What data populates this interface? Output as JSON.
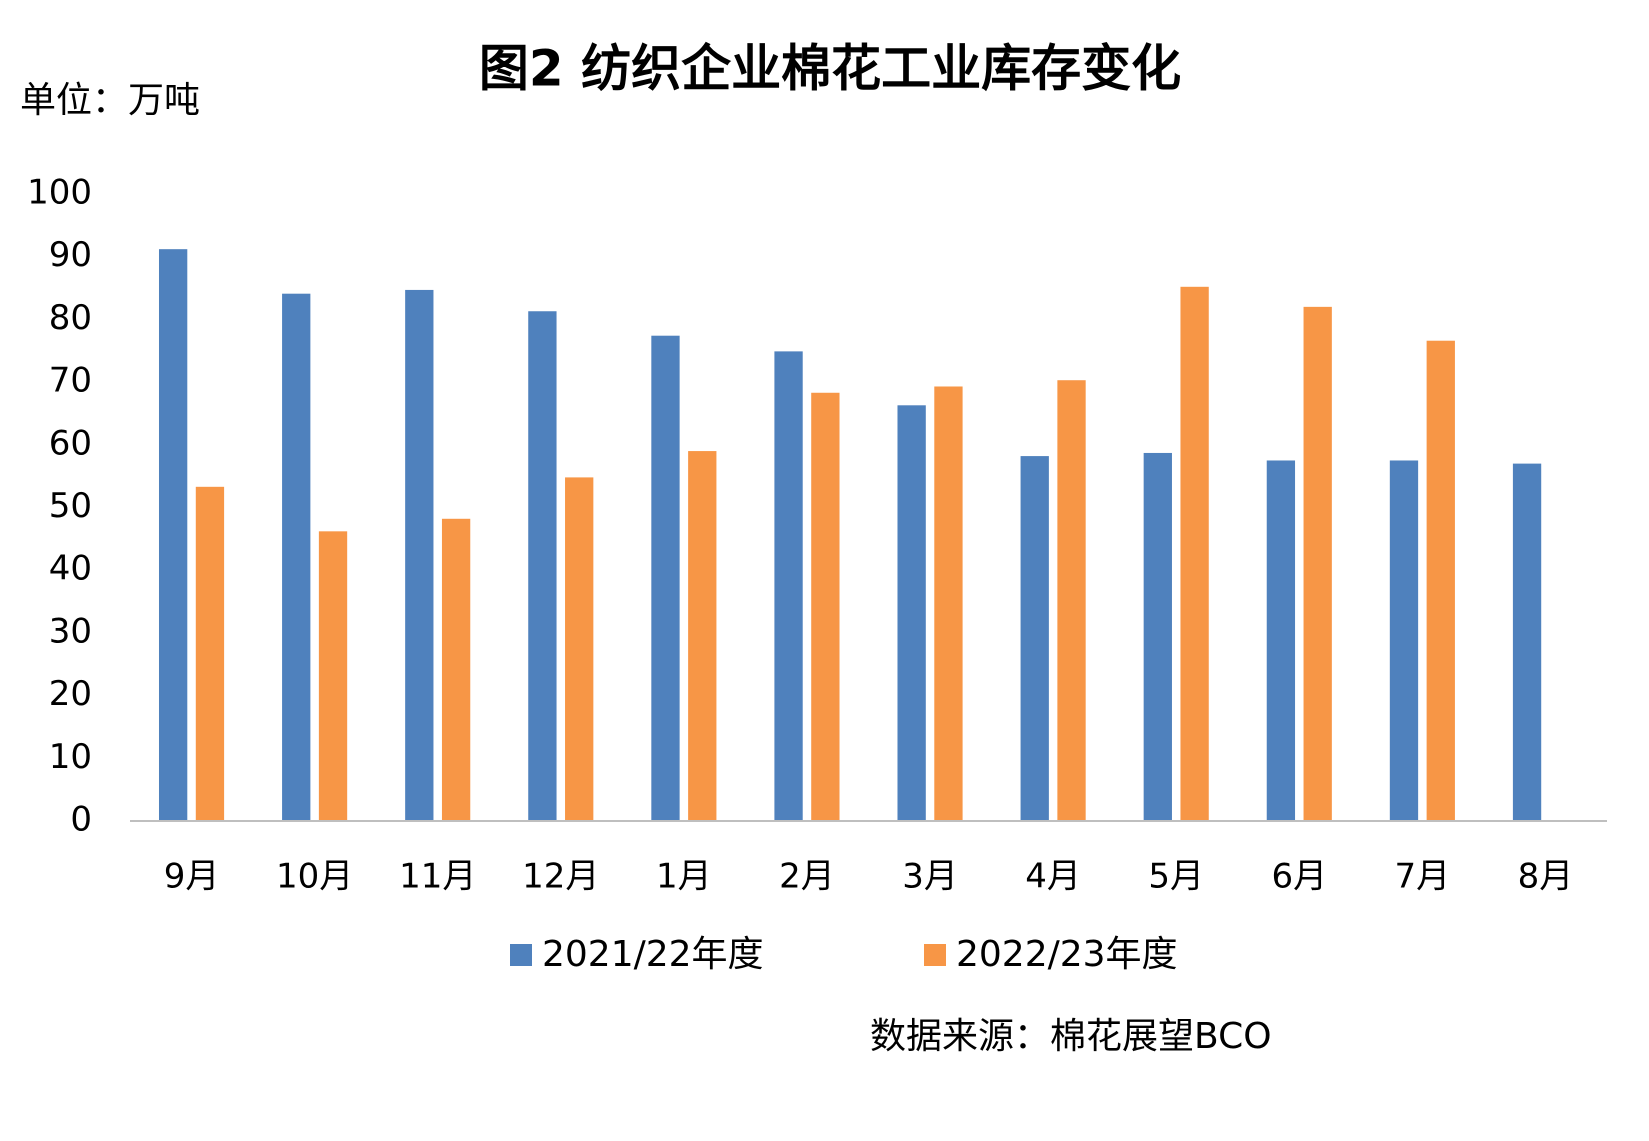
{
  "chart_data": {
    "type": "bar",
    "title": "图2  纺织企业棉花工业库存变化",
    "unit": "单位：万吨",
    "source": "数据来源：棉花展望BCO",
    "categories": [
      "9月",
      "10月",
      "11月",
      "12月",
      "1月",
      "2月",
      "3月",
      "4月",
      "5月",
      "6月",
      "7月",
      "8月"
    ],
    "series": [
      {
        "name": "2021/22年度",
        "color": "#4f81bd",
        "values": [
          91.2,
          84.1,
          84.7,
          81.3,
          77.4,
          74.9,
          66.3,
          58.2,
          58.7,
          57.5,
          57.5,
          57.0
        ]
      },
      {
        "name": "2022/23年度",
        "color": "#f79646",
        "values": [
          53.3,
          46.2,
          48.2,
          54.8,
          59.0,
          68.3,
          69.3,
          70.3,
          85.2,
          82.0,
          76.6,
          null
        ]
      }
    ],
    "ylim": [
      0,
      100
    ],
    "yticks": [
      0,
      10,
      20,
      30,
      40,
      50,
      60,
      70,
      80,
      90,
      100
    ],
    "grid": false,
    "legend": "bottom"
  }
}
